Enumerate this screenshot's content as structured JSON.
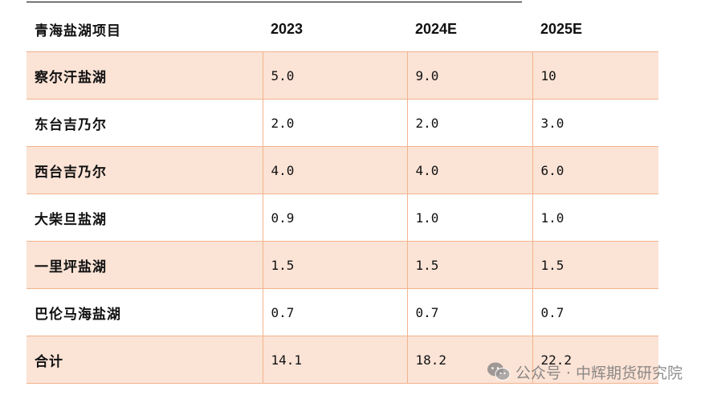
{
  "table": {
    "headers": [
      "青海盐湖项目",
      "2023",
      "2024E",
      "2025E"
    ],
    "rows": [
      {
        "name": "察尔汗盐湖",
        "values": [
          "5.0",
          "9.0",
          "10"
        ]
      },
      {
        "name": "东台吉乃尔",
        "values": [
          "2.0",
          "2.0",
          "3.0"
        ]
      },
      {
        "name": "西台吉乃尔",
        "values": [
          "4.0",
          "4.0",
          "6.0"
        ]
      },
      {
        "name": "大柴旦盐湖",
        "values": [
          "0.9",
          "1.0",
          "1.0"
        ]
      },
      {
        "name": "一里坪盐湖",
        "values": [
          "1.5",
          "1.5",
          "1.5"
        ]
      },
      {
        "name": "巴伦马海盐湖",
        "values": [
          "0.7",
          "0.7",
          "0.7"
        ]
      },
      {
        "name": "合计",
        "values": [
          "14.1",
          "18.2",
          "22.2"
        ]
      }
    ]
  },
  "watermark": {
    "text": "公众号 · 中辉期货研究院",
    "icon": "wechat-icon"
  },
  "colors": {
    "row_shade": "#fbe3d6",
    "grid_line": "#f2b38c"
  }
}
